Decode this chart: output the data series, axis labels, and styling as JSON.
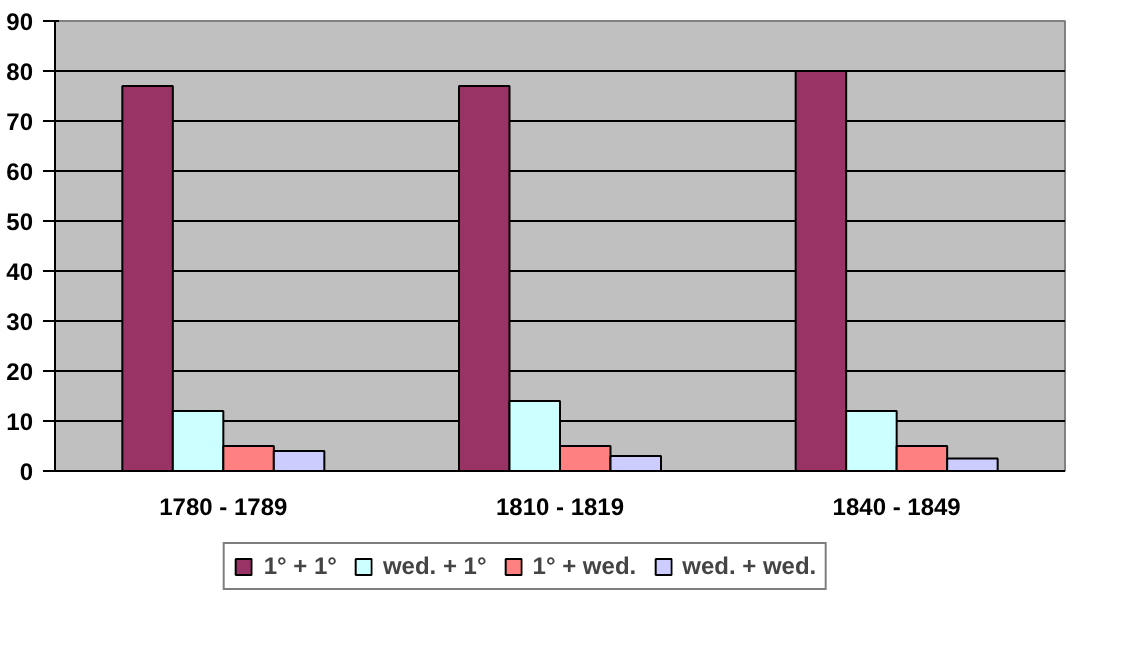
{
  "chart_data": {
    "type": "bar",
    "categories": [
      "1780 - 1789",
      "1810 - 1819",
      "1840 - 1849"
    ],
    "series": [
      {
        "name": "1° + 1°",
        "color": "#993366",
        "values": [
          77,
          77,
          80
        ]
      },
      {
        "name": "wed. + 1°",
        "color": "#ccffff",
        "values": [
          12,
          14,
          12
        ]
      },
      {
        "name": "1° + wed.",
        "color": "#ff8080",
        "values": [
          5,
          5,
          5
        ]
      },
      {
        "name": "wed. + wed.",
        "color": "#ccccff",
        "values": [
          4,
          3,
          2.5
        ]
      }
    ],
    "ylim": [
      0,
      90
    ],
    "yticks": [
      0,
      10,
      20,
      30,
      40,
      50,
      60,
      70,
      80,
      90
    ],
    "grid": "y",
    "legend": "bottom"
  }
}
